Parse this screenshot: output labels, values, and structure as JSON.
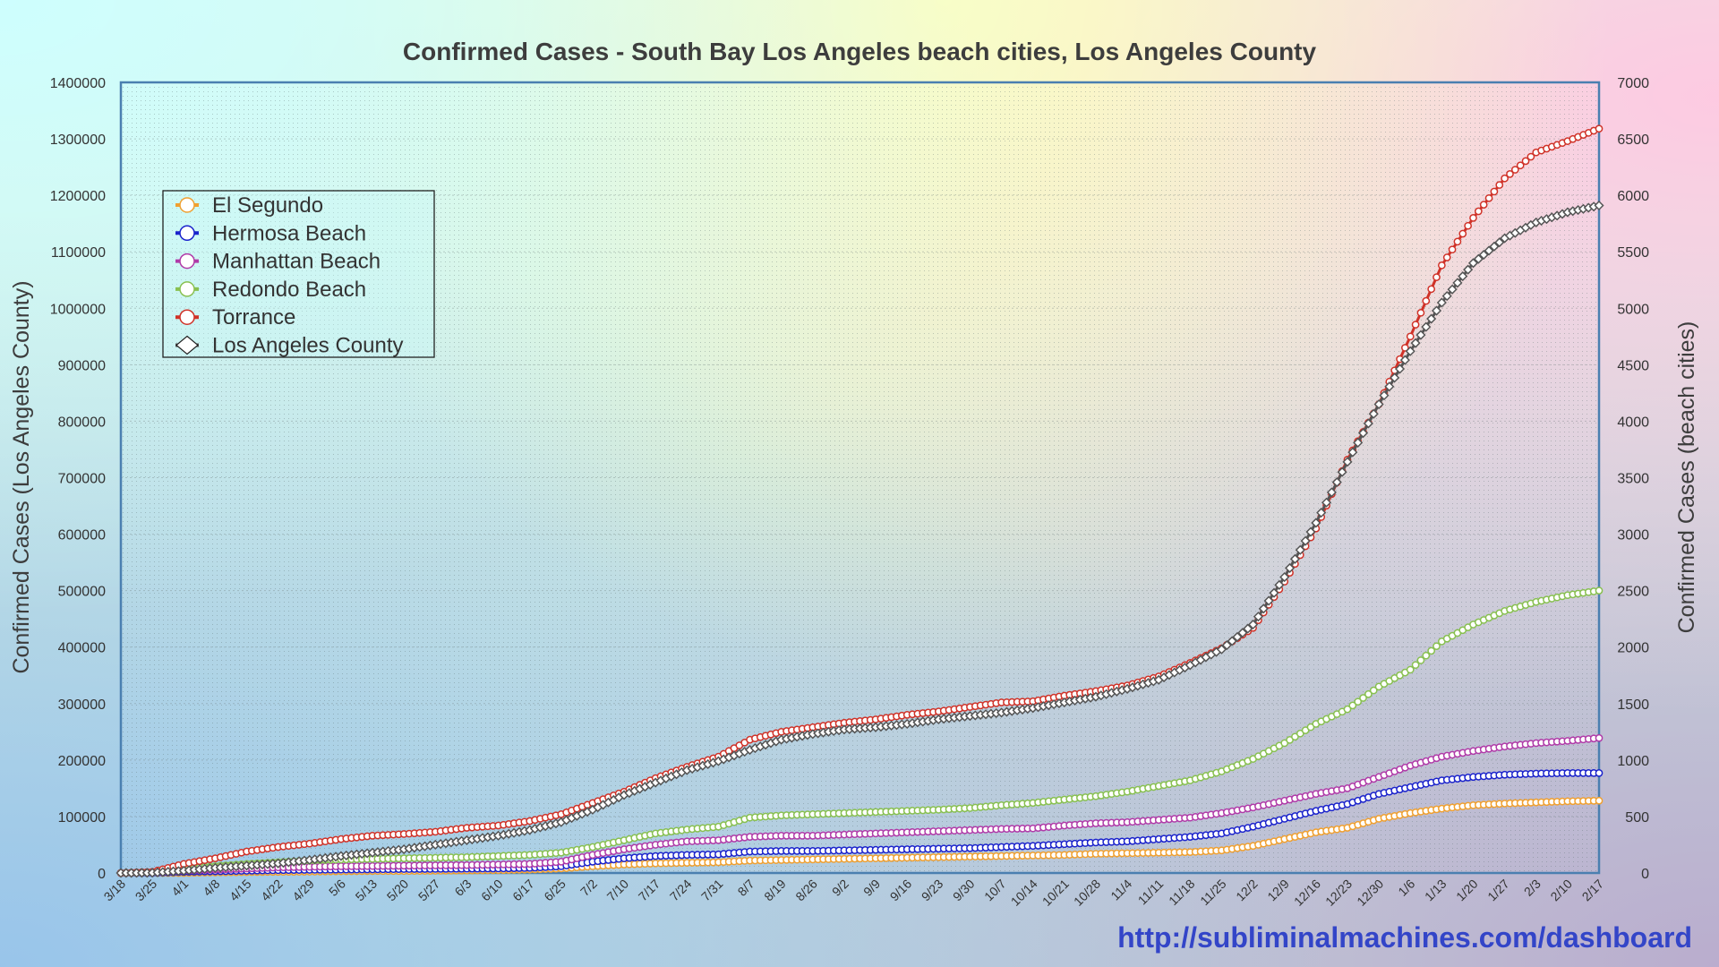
{
  "chart_data": {
    "type": "line",
    "title": "Confirmed Cases - South Bay Los Angeles beach cities, Los Angeles County",
    "xlabel": "",
    "ylabel_left": "Confirmed Cases (Los Angeles County)",
    "ylabel_right": "Confirmed Cases (beach cities)",
    "ylim_left": [
      0,
      1400000
    ],
    "ylim_right": [
      0,
      7000
    ],
    "yticks_left": [
      "0",
      "100000",
      "200000",
      "300000",
      "400000",
      "500000",
      "600000",
      "700000",
      "800000",
      "900000",
      "1000000",
      "1100000",
      "1200000",
      "1300000",
      "1400000"
    ],
    "yticks_right": [
      "0",
      "500",
      "1000",
      "1500",
      "2000",
      "2500",
      "3000",
      "3500",
      "4000",
      "4500",
      "5000",
      "5500",
      "6000",
      "6500",
      "7000"
    ],
    "grid": true,
    "legend_position": "top-left",
    "categories": [
      "3/18",
      "3/25",
      "4/1",
      "4/8",
      "4/15",
      "4/22",
      "4/29",
      "5/6",
      "5/13",
      "5/20",
      "5/27",
      "6/3",
      "6/10",
      "6/17",
      "6/25",
      "7/2",
      "7/10",
      "7/17",
      "7/24",
      "7/31",
      "8/7",
      "8/19",
      "8/26",
      "9/2",
      "9/9",
      "9/16",
      "9/23",
      "9/30",
      "10/7",
      "10/14",
      "10/21",
      "10/28",
      "11/4",
      "11/11",
      "11/18",
      "11/25",
      "12/2",
      "12/9",
      "12/16",
      "12/23",
      "12/30",
      "1/6",
      "1/13",
      "1/20",
      "1/27",
      "2/3",
      "2/10",
      "2/17"
    ],
    "series": [
      {
        "name": "El Segundo",
        "axis": "right",
        "color": "#f0a030",
        "marker": "circle",
        "values": [
          0,
          0,
          0,
          5,
          8,
          10,
          12,
          15,
          17,
          18,
          20,
          22,
          25,
          30,
          40,
          60,
          75,
          85,
          90,
          95,
          110,
          115,
          120,
          125,
          130,
          135,
          140,
          145,
          150,
          155,
          160,
          170,
          175,
          180,
          185,
          200,
          240,
          300,
          360,
          400,
          480,
          530,
          570,
          600,
          615,
          625,
          635,
          640
        ]
      },
      {
        "name": "Hermosa Beach",
        "axis": "right",
        "color": "#1a22cc",
        "marker": "circle",
        "values": [
          0,
          0,
          10,
          15,
          20,
          25,
          28,
          30,
          32,
          35,
          36,
          38,
          40,
          45,
          60,
          100,
          130,
          150,
          160,
          165,
          190,
          195,
          195,
          200,
          205,
          210,
          215,
          220,
          230,
          240,
          255,
          270,
          280,
          300,
          320,
          350,
          410,
          480,
          550,
          610,
          700,
          760,
          820,
          850,
          870,
          880,
          885,
          885
        ]
      },
      {
        "name": "Manhattan Beach",
        "axis": "right",
        "color": "#b03aa8",
        "marker": "circle",
        "values": [
          0,
          5,
          20,
          30,
          40,
          50,
          55,
          60,
          62,
          65,
          68,
          70,
          75,
          80,
          100,
          160,
          210,
          250,
          280,
          290,
          320,
          330,
          330,
          340,
          350,
          360,
          370,
          380,
          390,
          395,
          420,
          440,
          450,
          470,
          490,
          530,
          580,
          640,
          700,
          750,
          850,
          950,
          1030,
          1080,
          1120,
          1150,
          1170,
          1195
        ]
      },
      {
        "name": "Redondo Beach",
        "axis": "right",
        "color": "#88c050",
        "marker": "circle",
        "values": [
          0,
          5,
          40,
          60,
          80,
          95,
          110,
          120,
          125,
          130,
          135,
          140,
          150,
          160,
          180,
          230,
          290,
          350,
          385,
          410,
          490,
          510,
          520,
          530,
          540,
          550,
          560,
          575,
          600,
          620,
          650,
          680,
          720,
          770,
          820,
          900,
          1010,
          1150,
          1320,
          1450,
          1650,
          1800,
          2050,
          2200,
          2320,
          2400,
          2460,
          2500
        ]
      },
      {
        "name": "Torrance",
        "axis": "right",
        "color": "#d03228",
        "marker": "circle",
        "values": [
          0,
          10,
          80,
          130,
          190,
          230,
          260,
          300,
          330,
          345,
          365,
          400,
          420,
          460,
          520,
          620,
          720,
          840,
          940,
          1030,
          1180,
          1250,
          1290,
          1330,
          1360,
          1400,
          1430,
          1470,
          1510,
          1520,
          1570,
          1610,
          1660,
          1740,
          1860,
          1990,
          2170,
          2580,
          3050,
          3660,
          4150,
          4750,
          5380,
          5800,
          6150,
          6380,
          6480,
          6590
        ]
      },
      {
        "name": "Los Angeles County",
        "axis": "left",
        "color": "#555555",
        "marker": "diamond",
        "values": [
          0,
          400,
          4000,
          9000,
          13000,
          17000,
          23000,
          30000,
          36000,
          42000,
          50000,
          58000,
          66000,
          76000,
          90000,
          112000,
          138000,
          160000,
          182000,
          198000,
          218000,
          236000,
          246000,
          254000,
          258000,
          264000,
          272000,
          278000,
          284000,
          292000,
          302000,
          312000,
          326000,
          342000,
          368000,
          396000,
          440000,
          524000,
          620000,
          728000,
          830000,
          924000,
          1010000,
          1080000,
          1124000,
          1152000,
          1170000,
          1182000
        ]
      }
    ]
  },
  "footer": {
    "url": "http://subliminalmachines.com/dashboard"
  }
}
